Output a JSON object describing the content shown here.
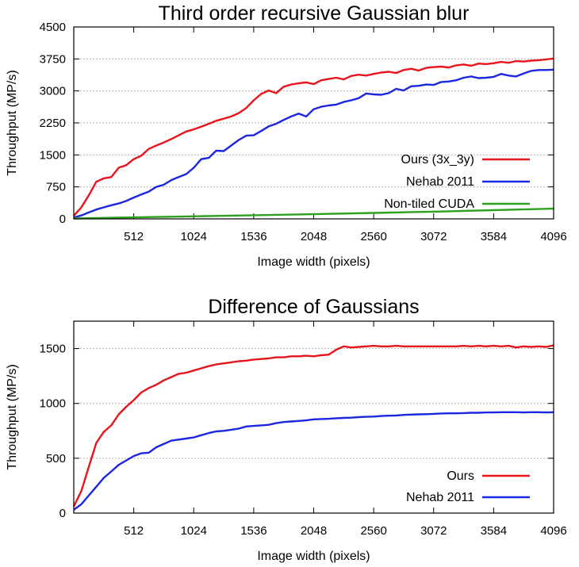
{
  "chart_data": [
    {
      "type": "line",
      "title": "Third order recursive Gaussian blur",
      "xlabel": "Image width (pixels)",
      "ylabel": "Throughput (MP/s)",
      "xlim": [
        0,
        4096
      ],
      "ylim": [
        0,
        4500
      ],
      "xticks": [
        "512",
        "1024",
        "1536",
        "2048",
        "2560",
        "3072",
        "3584",
        "4096"
      ],
      "yticks": [
        "0",
        "750",
        "1500",
        "2250",
        "3000",
        "3750",
        "4500"
      ],
      "grid": "horizontal-dotted",
      "legend_position": "right",
      "series": [
        {
          "name": "Ours (3x_3y)",
          "color": "#e8141b",
          "x": [
            0,
            64,
            128,
            192,
            256,
            320,
            384,
            448,
            512,
            576,
            640,
            704,
            768,
            832,
            896,
            960,
            1024,
            1088,
            1152,
            1216,
            1280,
            1344,
            1408,
            1472,
            1536,
            1600,
            1664,
            1728,
            1792,
            1856,
            1920,
            1984,
            2048,
            2112,
            2176,
            2240,
            2304,
            2368,
            2432,
            2496,
            2560,
            2624,
            2688,
            2752,
            2816,
            2880,
            2944,
            3008,
            3072,
            3136,
            3200,
            3264,
            3328,
            3392,
            3456,
            3520,
            3584,
            3648,
            3712,
            3776,
            3840,
            3904,
            3968,
            4032,
            4096
          ],
          "y": [
            70,
            270,
            550,
            870,
            950,
            980,
            1200,
            1260,
            1400,
            1480,
            1640,
            1720,
            1790,
            1870,
            1960,
            2050,
            2100,
            2160,
            2230,
            2300,
            2350,
            2400,
            2480,
            2600,
            2780,
            2930,
            3010,
            2950,
            3100,
            3150,
            3180,
            3200,
            3160,
            3250,
            3280,
            3310,
            3270,
            3350,
            3380,
            3360,
            3400,
            3430,
            3450,
            3420,
            3490,
            3520,
            3480,
            3540,
            3560,
            3570,
            3550,
            3600,
            3620,
            3590,
            3640,
            3630,
            3650,
            3680,
            3660,
            3700,
            3690,
            3710,
            3720,
            3740,
            3760
          ]
        },
        {
          "name": "Nehab 2011",
          "color": "#1b26e0",
          "x": [
            0,
            64,
            128,
            192,
            256,
            320,
            384,
            448,
            512,
            576,
            640,
            704,
            768,
            832,
            896,
            960,
            1024,
            1088,
            1152,
            1216,
            1280,
            1344,
            1408,
            1472,
            1536,
            1600,
            1664,
            1728,
            1792,
            1856,
            1920,
            1984,
            2048,
            2112,
            2176,
            2240,
            2304,
            2368,
            2432,
            2496,
            2560,
            2624,
            2688,
            2752,
            2816,
            2880,
            2944,
            3008,
            3072,
            3136,
            3200,
            3264,
            3328,
            3392,
            3456,
            3520,
            3584,
            3648,
            3712,
            3776,
            3840,
            3904,
            3968,
            4032,
            4096
          ],
          "y": [
            30,
            80,
            150,
            220,
            270,
            320,
            360,
            420,
            500,
            570,
            640,
            750,
            800,
            910,
            980,
            1050,
            1200,
            1400,
            1430,
            1600,
            1590,
            1720,
            1850,
            1950,
            1960,
            2060,
            2170,
            2230,
            2320,
            2400,
            2470,
            2400,
            2570,
            2630,
            2660,
            2680,
            2740,
            2780,
            2830,
            2940,
            2920,
            2910,
            2950,
            3050,
            3010,
            3110,
            3120,
            3150,
            3140,
            3210,
            3220,
            3250,
            3310,
            3340,
            3300,
            3310,
            3330,
            3400,
            3360,
            3340,
            3410,
            3470,
            3490,
            3490,
            3500
          ]
        },
        {
          "name": "Non-tiled CUDA",
          "color": "#2ea01f",
          "x": [
            0,
            512,
            1024,
            1536,
            2048,
            2560,
            3072,
            3584,
            4096
          ],
          "y": [
            10,
            35,
            60,
            85,
            110,
            140,
            170,
            205,
            240
          ]
        }
      ]
    },
    {
      "type": "line",
      "title": "Difference of Gaussians",
      "xlabel": "Image width (pixels)",
      "ylabel": "Throughput (MP/s)",
      "xlim": [
        0,
        4096
      ],
      "ylim": [
        0,
        1750
      ],
      "xticks": [
        "512",
        "1024",
        "1536",
        "2048",
        "2560",
        "3072",
        "3584",
        "4096"
      ],
      "yticks": [
        "0",
        "500",
        "1000",
        "1500"
      ],
      "grid": "horizontal-dotted",
      "legend_position": "bottom-right",
      "series": [
        {
          "name": "Ours",
          "color": "#e8141b",
          "x": [
            0,
            64,
            128,
            192,
            256,
            320,
            384,
            448,
            512,
            576,
            640,
            704,
            768,
            832,
            896,
            960,
            1024,
            1088,
            1152,
            1216,
            1280,
            1344,
            1408,
            1472,
            1536,
            1600,
            1664,
            1728,
            1792,
            1856,
            1920,
            1984,
            2048,
            2112,
            2176,
            2240,
            2304,
            2368,
            2432,
            2496,
            2560,
            2624,
            2688,
            2752,
            2816,
            2880,
            2944,
            3008,
            3072,
            3136,
            3200,
            3264,
            3328,
            3392,
            3456,
            3520,
            3584,
            3648,
            3712,
            3776,
            3840,
            3904,
            3968,
            4032,
            4096
          ],
          "y": [
            60,
            200,
            420,
            640,
            740,
            800,
            900,
            970,
            1030,
            1100,
            1140,
            1170,
            1210,
            1240,
            1270,
            1280,
            1300,
            1320,
            1340,
            1355,
            1365,
            1375,
            1385,
            1390,
            1400,
            1405,
            1410,
            1420,
            1420,
            1430,
            1430,
            1435,
            1430,
            1440,
            1445,
            1490,
            1520,
            1510,
            1515,
            1520,
            1525,
            1520,
            1520,
            1525,
            1520,
            1520,
            1520,
            1520,
            1520,
            1520,
            1520,
            1520,
            1525,
            1520,
            1525,
            1520,
            1525,
            1520,
            1525,
            1510,
            1520,
            1515,
            1520,
            1515,
            1530
          ]
        },
        {
          "name": "Nehab 2011",
          "color": "#1b26e0",
          "x": [
            0,
            64,
            128,
            192,
            256,
            320,
            384,
            448,
            512,
            576,
            640,
            704,
            768,
            832,
            896,
            960,
            1024,
            1088,
            1152,
            1216,
            1280,
            1344,
            1408,
            1472,
            1536,
            1600,
            1664,
            1728,
            1792,
            1856,
            1920,
            1984,
            2048,
            2112,
            2176,
            2240,
            2304,
            2368,
            2432,
            2496,
            2560,
            2624,
            2688,
            2752,
            2816,
            2880,
            2944,
            3008,
            3072,
            3136,
            3200,
            3264,
            3328,
            3392,
            3456,
            3520,
            3584,
            3648,
            3712,
            3776,
            3840,
            3904,
            3968,
            4032,
            4096
          ],
          "y": [
            30,
            80,
            160,
            240,
            320,
            380,
            440,
            480,
            520,
            545,
            550,
            600,
            630,
            660,
            670,
            680,
            690,
            710,
            730,
            745,
            750,
            760,
            770,
            790,
            795,
            800,
            805,
            820,
            830,
            835,
            840,
            845,
            855,
            858,
            860,
            865,
            868,
            870,
            875,
            878,
            880,
            885,
            888,
            890,
            895,
            898,
            900,
            902,
            905,
            908,
            910,
            910,
            912,
            915,
            915,
            918,
            918,
            920,
            920,
            920,
            918,
            920,
            920,
            918,
            920
          ]
        }
      ]
    }
  ]
}
